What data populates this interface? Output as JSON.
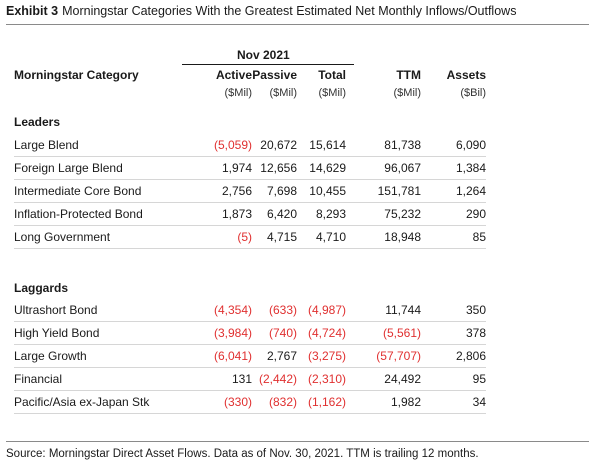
{
  "header": {
    "exhibit_label": "Exhibit 3",
    "title": "Morningstar Categories With the Greatest Estimated Net Monthly Inflows/Outflows"
  },
  "table": {
    "period": "Nov 2021",
    "category_header": "Morningstar Category",
    "columns": [
      {
        "label": "Active",
        "unit": "($Mil)"
      },
      {
        "label": "Passive",
        "unit": "($Mil)"
      },
      {
        "label": "Total",
        "unit": "($Mil)"
      },
      {
        "label": "TTM",
        "unit": "($Mil)"
      },
      {
        "label": "Assets",
        "unit": "($Bil)"
      }
    ],
    "sections": [
      {
        "label": "Leaders",
        "rows": [
          {
            "category": "Large Blend",
            "active": "(5,059)",
            "passive": "20,672",
            "total": "15,614",
            "ttm": "81,738",
            "assets": "6,090"
          },
          {
            "category": "Foreign Large Blend",
            "active": "1,974",
            "passive": "12,656",
            "total": "14,629",
            "ttm": "96,067",
            "assets": "1,384"
          },
          {
            "category": "Intermediate Core Bond",
            "active": "2,756",
            "passive": "7,698",
            "total": "10,455",
            "ttm": "151,781",
            "assets": "1,264"
          },
          {
            "category": "Inflation-Protected Bond",
            "active": "1,873",
            "passive": "6,420",
            "total": "8,293",
            "ttm": "75,232",
            "assets": "290"
          },
          {
            "category": "Long Government",
            "active": "(5)",
            "passive": "4,715",
            "total": "4,710",
            "ttm": "18,948",
            "assets": "85"
          }
        ]
      },
      {
        "label": "Laggards",
        "rows": [
          {
            "category": "Ultrashort Bond",
            "active": "(4,354)",
            "passive": "(633)",
            "total": "(4,987)",
            "ttm": "11,744",
            "assets": "350"
          },
          {
            "category": "High Yield Bond",
            "active": "(3,984)",
            "passive": "(740)",
            "total": "(4,724)",
            "ttm": "(5,561)",
            "assets": "378"
          },
          {
            "category": "Large Growth",
            "active": "(6,041)",
            "passive": "2,767",
            "total": "(3,275)",
            "ttm": "(57,707)",
            "assets": "2,806"
          },
          {
            "category": "Financial",
            "active": "131",
            "passive": "(2,442)",
            "total": "(2,310)",
            "ttm": "24,492",
            "assets": "95"
          },
          {
            "category": "Pacific/Asia ex-Japan Stk",
            "active": "(330)",
            "passive": "(832)",
            "total": "(1,162)",
            "ttm": "1,982",
            "assets": "34"
          }
        ]
      }
    ]
  },
  "footer": {
    "source": "Source: Morningstar Direct Asset Flows. Data as of Nov. 30, 2021. TTM is trailing 12 months."
  },
  "colors": {
    "negative": "#e03030",
    "text": "#1a1a1a",
    "rule": "#8a8a8a",
    "row_separator": "#d6d6d6"
  }
}
